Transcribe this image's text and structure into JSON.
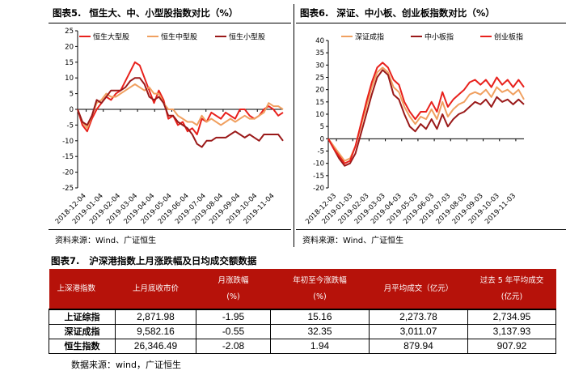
{
  "chart5": {
    "label": "图表5.",
    "title": "恒生大、中、小型股指数对比（%）",
    "source": "资料来源：Wind、广证恒生",
    "chart_data": {
      "type": "line",
      "ylim": [
        -25,
        25
      ],
      "yticks": [
        -25,
        -20,
        -15,
        -10,
        -5,
        0,
        5,
        10,
        15,
        20,
        25
      ],
      "xticks": [
        "2018-12-04",
        "2019-01-04",
        "2019-02-04",
        "2019-03-04",
        "2019-04-04",
        "2019-05-04",
        "2019-06-04",
        "2019-07-04",
        "2019-08-04",
        "2019-09-04",
        "2019-10-04",
        "2019-11-04"
      ],
      "series": [
        {
          "name": "恒生大型股",
          "color": "#e8211c",
          "values": [
            0,
            -5,
            -7,
            -3,
            0,
            2,
            4,
            3,
            5,
            6,
            9,
            12,
            15,
            14,
            10,
            6,
            2,
            6,
            3,
            -3,
            -2,
            -5,
            -4,
            -7,
            -6,
            -8,
            -3,
            -4,
            -1,
            -2,
            -3,
            -1,
            -2,
            -3,
            0,
            0,
            -2,
            -3,
            -2,
            0,
            1,
            0,
            -2,
            -1
          ]
        },
        {
          "name": "恒生中型股",
          "color": "#f0a060",
          "values": [
            0,
            -4,
            -6,
            -2,
            2,
            3,
            5,
            4,
            4,
            5,
            6,
            7,
            8,
            7,
            6,
            7,
            5,
            5,
            2,
            0,
            0,
            -2,
            -3,
            -4,
            -4,
            -5,
            -2,
            -4,
            -3,
            -4,
            -5,
            -4,
            -3,
            -4,
            -3,
            -2,
            -3,
            -3,
            -2,
            -1,
            2,
            1,
            1,
            0
          ]
        },
        {
          "name": "恒生小型股",
          "color": "#9a1919",
          "values": [
            0,
            -4,
            -5,
            -2,
            3,
            2,
            4,
            6,
            6,
            6,
            7,
            9,
            10,
            10,
            8,
            4,
            3,
            4,
            2,
            -2,
            -2,
            -4,
            -5,
            -6,
            -8,
            -11,
            -12,
            -10,
            -10,
            -9,
            -9,
            -9,
            -8,
            -7,
            -8,
            -9,
            -8,
            -9,
            -10,
            -8,
            -8,
            -8,
            -8,
            -10
          ]
        }
      ]
    }
  },
  "chart6": {
    "label": "图表6.",
    "title": "深证、中小板、创业板指数对比（%）",
    "source": "资料来源：Wind、广证恒生",
    "chart_data": {
      "type": "line",
      "ylim": [
        -20,
        40
      ],
      "yticks": [
        -20,
        -15,
        -10,
        -5,
        0,
        5,
        10,
        15,
        20,
        25,
        30,
        35,
        40
      ],
      "xticks": [
        "2018-12-03",
        "2019-01-03",
        "2019-02-03",
        "2019-03-03",
        "2019-04-03",
        "2019-05-03",
        "2019-06-03",
        "2019-07-03",
        "2019-08-03",
        "2019-09-03",
        "2019-10-03",
        "2019-11-03"
      ],
      "series": [
        {
          "name": "深证成指",
          "color": "#f0a060",
          "values": [
            0,
            -3,
            -6,
            -9,
            -8,
            -3,
            5,
            13,
            21,
            27,
            29,
            27,
            21,
            19,
            13,
            9,
            6,
            9,
            8,
            12,
            8,
            15,
            9,
            12,
            14,
            15,
            18,
            19,
            18,
            20,
            17,
            21,
            19,
            20,
            18,
            20,
            16
          ]
        },
        {
          "name": "中小板指",
          "color": "#9a1919",
          "values": [
            0,
            -4,
            -8,
            -11,
            -10,
            -6,
            2,
            10,
            18,
            25,
            28,
            26,
            18,
            16,
            10,
            5,
            3,
            6,
            4,
            8,
            4,
            10,
            5,
            8,
            10,
            11,
            13,
            15,
            14,
            16,
            13,
            17,
            15,
            16,
            14,
            16,
            14
          ]
        },
        {
          "name": "创业板指",
          "color": "#e8211c",
          "values": [
            0,
            -4,
            -7,
            -10,
            -9,
            -3,
            6,
            15,
            23,
            29,
            31,
            29,
            24,
            22,
            15,
            11,
            8,
            11,
            11,
            15,
            11,
            19,
            13,
            16,
            18,
            20,
            23,
            24,
            22,
            24,
            21,
            25,
            22,
            24,
            21,
            24,
            21
          ]
        }
      ]
    }
  },
  "table7": {
    "label": "图表7.",
    "title": "沪深港指数上月涨跌幅及日均成交额数据",
    "headers": {
      "c0": "上深港指数",
      "c1": "上月底收市价",
      "c2a": "月涨跌幅",
      "c2b": "(%)",
      "c3a": "年初至今涨跌幅",
      "c3b": "(%)",
      "c4": "月平均成交（亿元）",
      "c5a": "过去 5 年平均成交",
      "c5b": "(亿元)"
    },
    "rows": [
      [
        "上证综指",
        "2,871.98",
        "-1.95",
        "15.16",
        "2,273.78",
        "2,734.95"
      ],
      [
        "深证成指",
        "9,582.16",
        "-0.55",
        "32.35",
        "3,011.07",
        "3,137.93"
      ],
      [
        "恒生指数",
        "26,346.49",
        "-2.08",
        "1.94",
        "879.94",
        "907.92"
      ]
    ],
    "source": "数据来源：wind，广证恒生"
  }
}
